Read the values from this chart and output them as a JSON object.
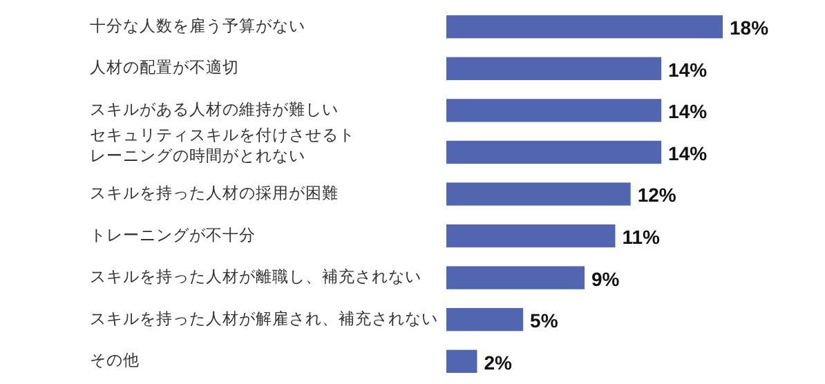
{
  "chart_data": {
    "type": "bar",
    "orientation": "horizontal",
    "categories": [
      "十分な人数を雇う予算がない",
      "人材の配置が不適切",
      "スキルがある人材の維持が難しい",
      "セキュリティスキルを付けさせるトレーニングの時間がとれない",
      "スキルを持った人材の採用が困難",
      "トレーニングが不十分",
      "スキルを持った人材が離職し、補充されない",
      "スキルを持った人材が解雇され、補充されない",
      "その他"
    ],
    "values": [
      18,
      14,
      14,
      14,
      12,
      11,
      9,
      5,
      2
    ],
    "value_labels": [
      "18%",
      "14%",
      "14%",
      "14%",
      "12%",
      "11%",
      "9%",
      "5%",
      "2%"
    ],
    "color": "#5165b0"
  }
}
